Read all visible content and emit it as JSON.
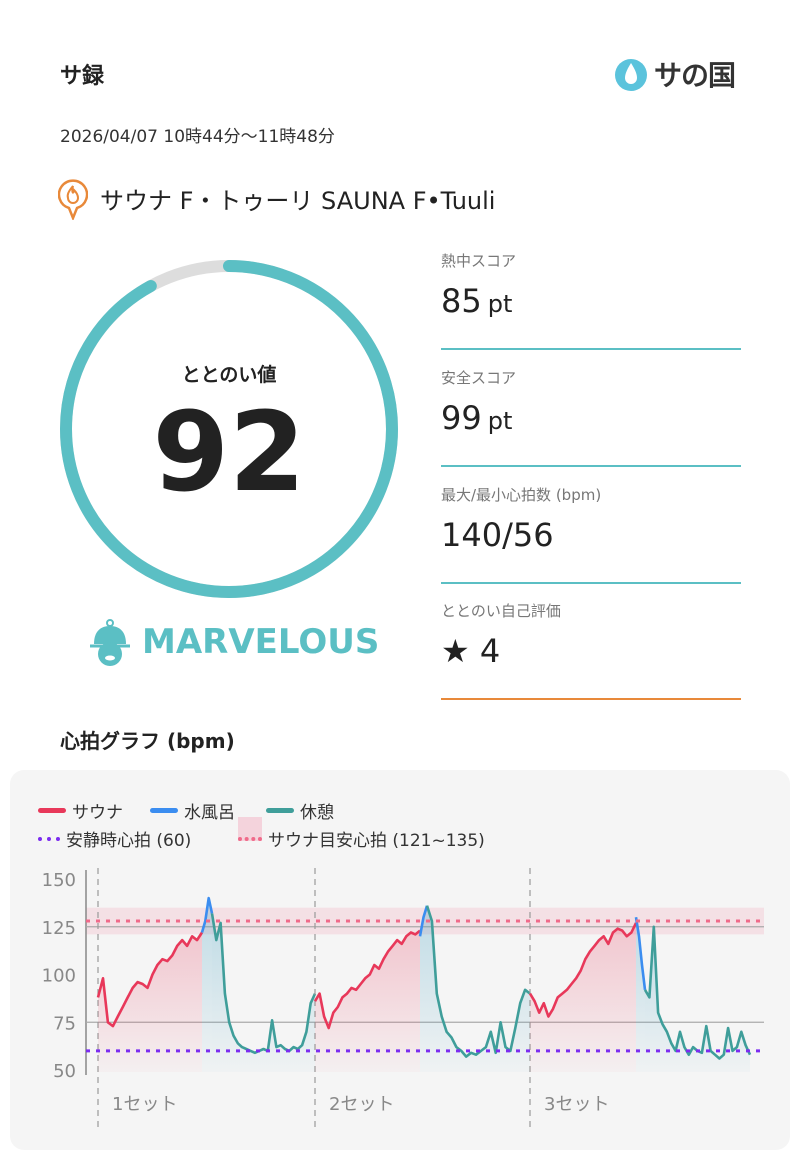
{
  "header": {
    "title": "サ録",
    "logo_text": "サの国",
    "date": "2026/04/07 10時44分〜11時48分",
    "facility": "サウナ F・トゥーリ SAUNA F•Tuuli"
  },
  "score": {
    "label": "ととのい値",
    "value": "92",
    "progress_percent": 92,
    "rank": "MARVELOUS"
  },
  "metrics": [
    {
      "label": "熱中スコア",
      "value": "85",
      "unit": "pt"
    },
    {
      "label": "安全スコア",
      "value": "99",
      "unit": "pt"
    },
    {
      "label": "最大/最小心拍数 (bpm)",
      "value": "140/56",
      "unit": ""
    },
    {
      "label": "ととのい自己評価",
      "value": "★ 4",
      "unit": ""
    }
  ],
  "colors": {
    "teal": "#5bbfc4",
    "sauna": "#e8385a",
    "cold": "#3b8df0",
    "rest": "#3f9e9a",
    "resting": "#7b2cf0",
    "target": "#f06a8a",
    "orange": "#e8893a"
  },
  "chart_data": {
    "type": "line",
    "title": "心拍グラフ (bpm)",
    "legend": [
      "サウナ",
      "水風呂",
      "休憩",
      "安静時心拍 (60)",
      "サウナ目安心拍 (121~135)"
    ],
    "legend_placement": "top-left",
    "ylim": [
      50,
      150
    ],
    "yticks": [
      50,
      75,
      100,
      125,
      150
    ],
    "set_labels": [
      "1セット",
      "2セット",
      "3セット"
    ],
    "resting_hr": 60,
    "target_range": [
      121,
      135
    ],
    "sets": [
      {
        "sauna": [
          88,
          98,
          75,
          73,
          78,
          83,
          88,
          93,
          96,
          95,
          93,
          100,
          105,
          108,
          107,
          110,
          115,
          118,
          115,
          120,
          118,
          122
        ],
        "cold": [
          122,
          128,
          140,
          132
        ],
        "rest": [
          132,
          118,
          127,
          90,
          75,
          68,
          64,
          62,
          61,
          60,
          59,
          60,
          61,
          60,
          76,
          62,
          63,
          61,
          60,
          62,
          61,
          63,
          70,
          85,
          90
        ]
      },
      {
        "sauna": [
          86,
          90,
          78,
          72,
          80,
          83,
          88,
          90,
          93,
          92,
          95,
          98,
          100,
          105,
          103,
          108,
          112,
          115,
          118,
          116,
          120,
          122,
          121,
          123
        ],
        "cold": [
          120,
          130,
          136
        ],
        "rest": [
          136,
          128,
          90,
          78,
          70,
          67,
          62,
          60,
          57,
          59,
          58,
          60,
          62,
          70,
          59,
          75,
          62,
          60,
          72,
          85,
          92,
          90
        ]
      },
      {
        "sauna": [
          90,
          86,
          80,
          85,
          78,
          82,
          88,
          90,
          92,
          95,
          98,
          102,
          108,
          112,
          115,
          118,
          120,
          116,
          122,
          124,
          123,
          120,
          122,
          127
        ],
        "cold": [
          130,
          120,
          105,
          92
        ],
        "rest": [
          92,
          88,
          125,
          80,
          74,
          70,
          64,
          60,
          70,
          62,
          58,
          62,
          60,
          59,
          73,
          60,
          58,
          56,
          58,
          72,
          60,
          62,
          70,
          63,
          58
        ]
      }
    ]
  }
}
